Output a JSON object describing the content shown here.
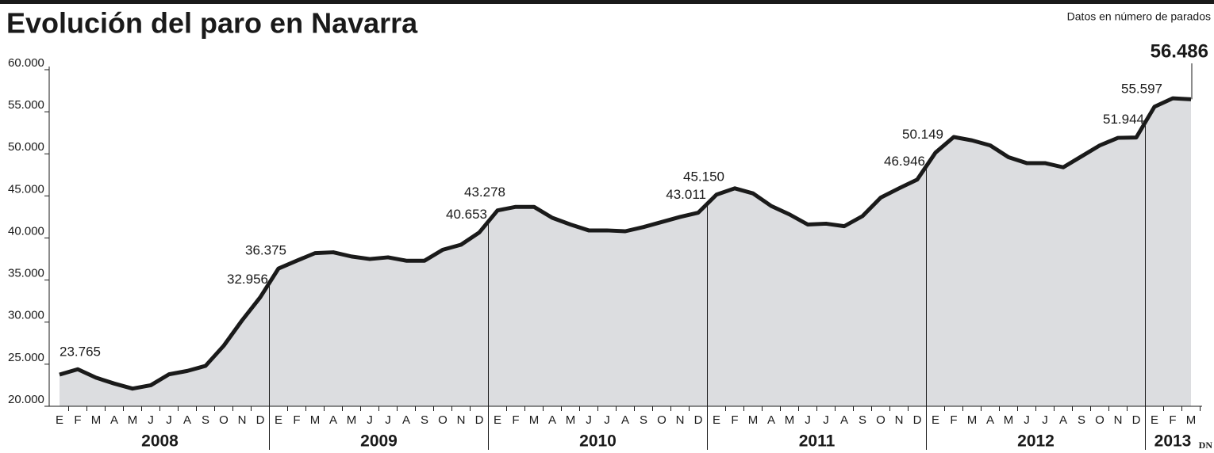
{
  "chart_data": {
    "type": "area",
    "title": "Evolución del paro en Navarra",
    "subtitle": "Datos en número de parados",
    "source": "DN",
    "categories": [
      "E",
      "F",
      "M",
      "A",
      "M",
      "J",
      "J",
      "A",
      "S",
      "O",
      "N",
      "D",
      "E",
      "F",
      "M",
      "A",
      "M",
      "J",
      "J",
      "A",
      "S",
      "O",
      "N",
      "D",
      "E",
      "F",
      "M",
      "A",
      "M",
      "J",
      "J",
      "A",
      "S",
      "O",
      "N",
      "D",
      "E",
      "F",
      "M",
      "A",
      "M",
      "J",
      "J",
      "A",
      "S",
      "O",
      "N",
      "D",
      "E",
      "F",
      "M",
      "A",
      "M",
      "J",
      "J",
      "A",
      "S",
      "O",
      "N",
      "D",
      "E",
      "F",
      "M"
    ],
    "groups": [
      "2008",
      "2009",
      "2010",
      "2011",
      "2012",
      "2013"
    ],
    "values": [
      23765,
      24400,
      23400,
      22700,
      22100,
      22500,
      23800,
      24200,
      24800,
      27200,
      30200,
      32956,
      36375,
      37300,
      38200,
      38300,
      37800,
      37500,
      37700,
      37300,
      37300,
      38600,
      39200,
      40653,
      43278,
      43700,
      43700,
      42400,
      41600,
      40900,
      40900,
      40800,
      41300,
      41900,
      42500,
      43011,
      45150,
      45900,
      45300,
      43800,
      42800,
      41600,
      41700,
      41400,
      42600,
      44800,
      45900,
      46946,
      50149,
      52000,
      51600,
      51000,
      49600,
      48900,
      48900,
      48400,
      49700,
      51000,
      51900,
      51944,
      55597,
      56600,
      56486
    ],
    "value_labels": [
      "23.765",
      null,
      null,
      null,
      null,
      null,
      null,
      null,
      null,
      null,
      null,
      "32.956",
      "36.375",
      null,
      null,
      null,
      null,
      null,
      null,
      null,
      null,
      null,
      null,
      "40.653",
      "43.278",
      null,
      null,
      null,
      null,
      null,
      null,
      null,
      null,
      null,
      null,
      "43.011",
      "45.150",
      null,
      null,
      null,
      null,
      null,
      null,
      null,
      null,
      null,
      null,
      "46.946",
      "50.149",
      null,
      null,
      null,
      null,
      null,
      null,
      null,
      null,
      null,
      null,
      "51.944",
      "55.597",
      null,
      "56.486"
    ],
    "color": "#1a1a1a",
    "fill": "#dcdde0",
    "ylim": [
      20000,
      60000
    ],
    "yticks": [
      {
        "value": 20000,
        "label": "20.000"
      },
      {
        "value": 25000,
        "label": "25.000"
      },
      {
        "value": 30000,
        "label": "30.000"
      },
      {
        "value": 35000,
        "label": "35.000"
      },
      {
        "value": 40000,
        "label": "40.000"
      },
      {
        "value": 45000,
        "label": "45.000"
      },
      {
        "value": 50000,
        "label": "50.000"
      },
      {
        "value": 55000,
        "label": "55.000"
      },
      {
        "value": 60000,
        "label": "60.000"
      }
    ]
  }
}
